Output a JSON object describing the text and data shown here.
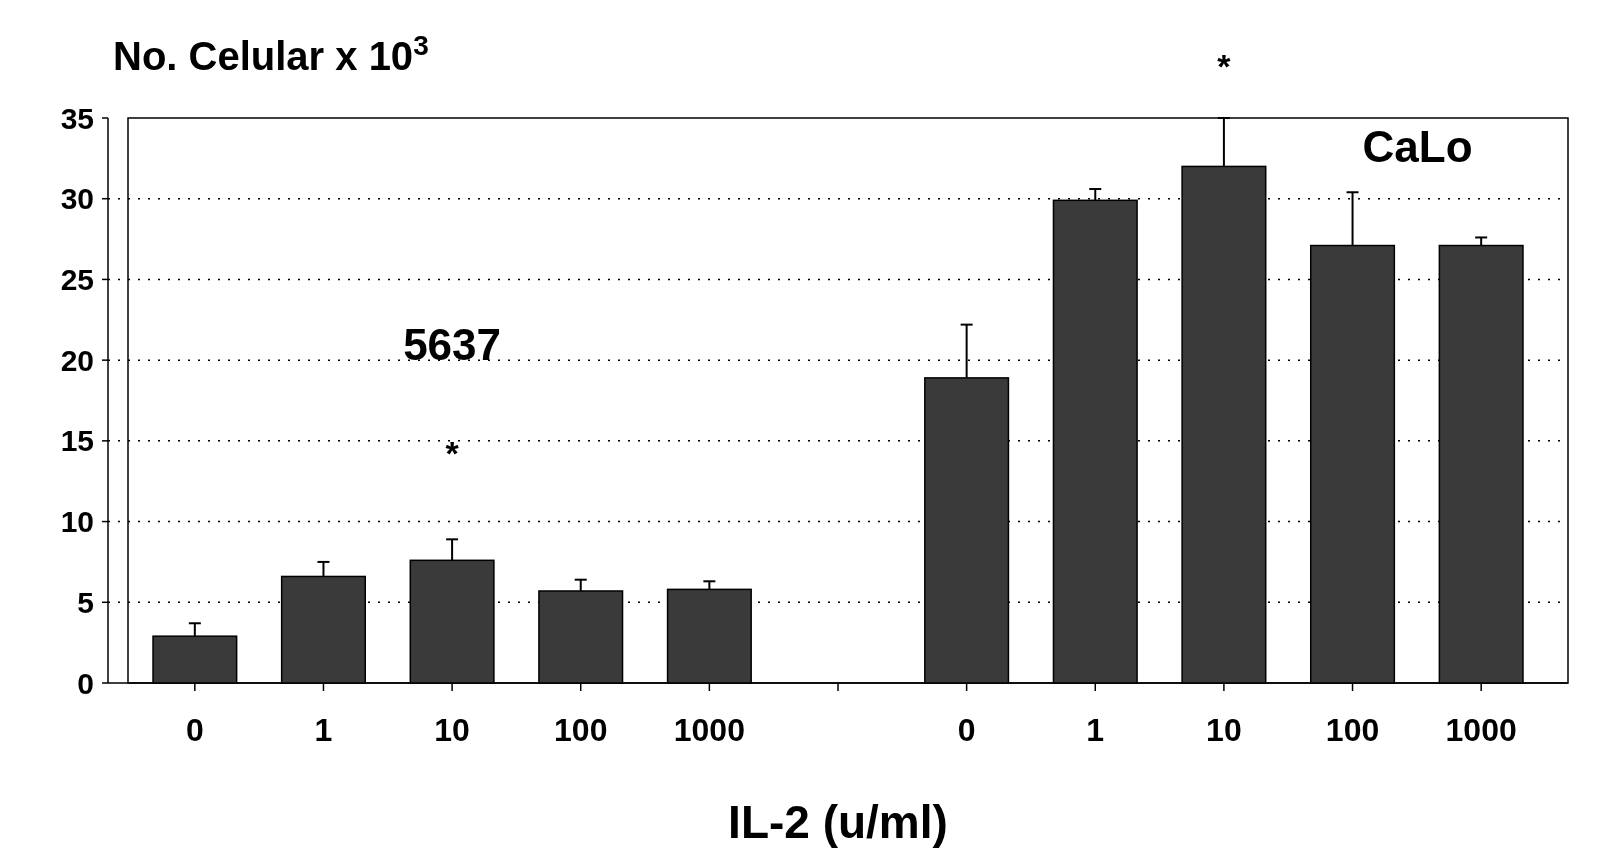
{
  "chart_data": {
    "type": "bar",
    "ylabel": "No. Celular x 10$^{3}$",
    "xlabel": "IL-2 (u/ml)",
    "categories": [
      "0",
      "1",
      "10",
      "100",
      "1000",
      null,
      "0",
      "1",
      "10",
      "100",
      "1000"
    ],
    "values": [
      2.9,
      6.6,
      7.6,
      5.7,
      5.8,
      null,
      18.9,
      29.9,
      32.0,
      27.1,
      27.1
    ],
    "errors": [
      [
        2.9,
        3.7
      ],
      [
        6.6,
        7.5
      ],
      [
        7.6,
        8.9
      ],
      [
        5.7,
        6.4
      ],
      [
        5.8,
        6.3
      ],
      null,
      [
        18.9,
        22.2
      ],
      [
        29.9,
        30.6
      ],
      [
        32.0,
        35
      ],
      [
        27.1,
        30.4
      ],
      [
        27.1,
        27.6
      ]
    ],
    "color": "#3a3a3a",
    "ylim": [
      0,
      35
    ],
    "yticks": [
      0,
      5,
      10,
      15,
      20,
      25,
      30,
      35
    ],
    "grid": "y",
    "annotations": [
      "5637",
      "CaLo",
      "*",
      "*"
    ]
  }
}
